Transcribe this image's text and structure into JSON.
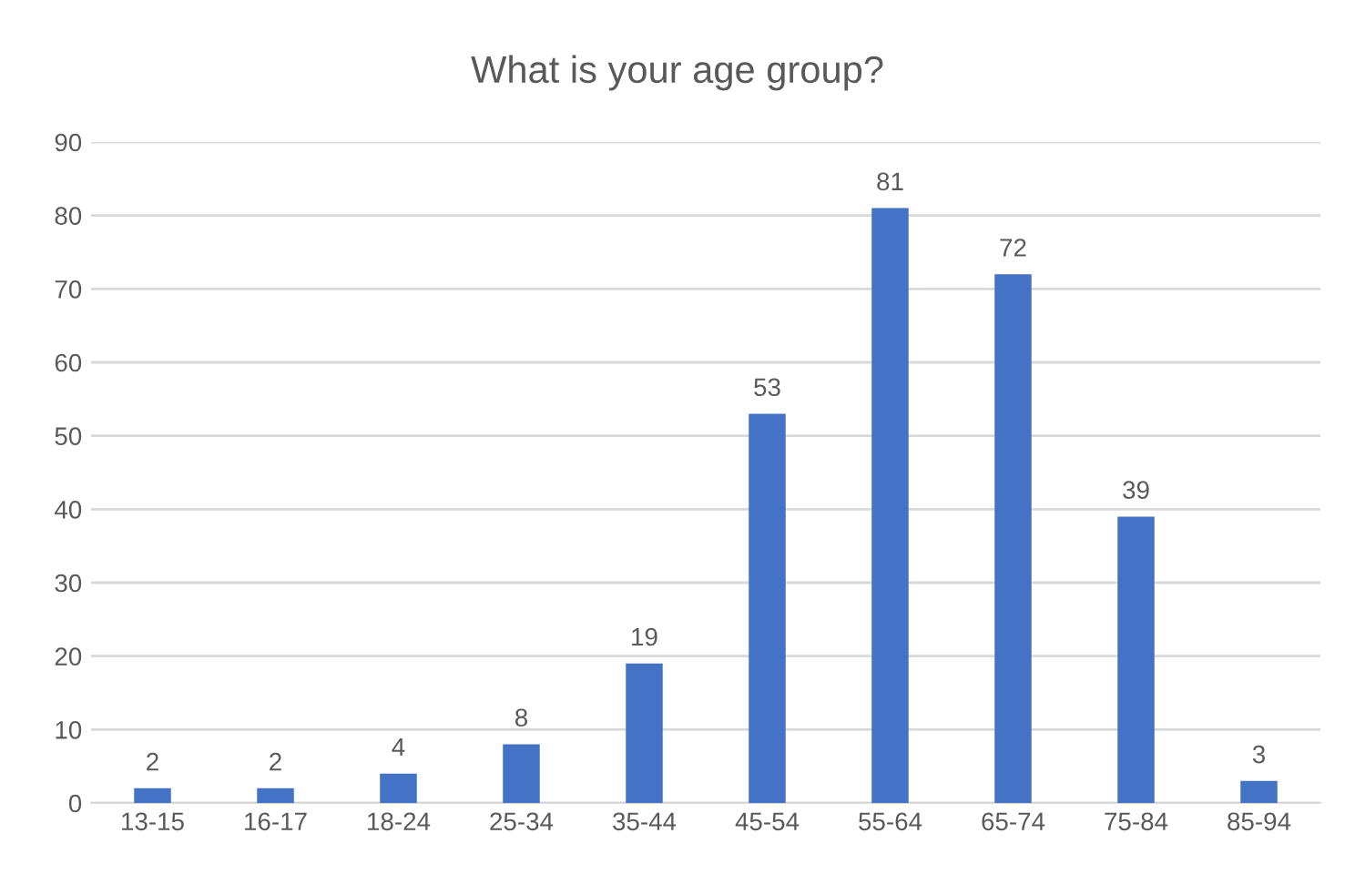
{
  "chart_data": {
    "type": "bar",
    "title": "What is your age group?",
    "categories": [
      "13-15",
      "16-17",
      "18-24",
      "25-34",
      "35-44",
      "45-54",
      "55-64",
      "65-74",
      "75-84",
      "85-94"
    ],
    "values": [
      2,
      2,
      4,
      8,
      19,
      53,
      81,
      72,
      39,
      3
    ],
    "color": "#4472c4",
    "ylim": [
      0,
      90
    ],
    "yticks": [
      0,
      10,
      20,
      30,
      40,
      50,
      60,
      70,
      80,
      90
    ],
    "grid": "y",
    "data_labels": true
  }
}
